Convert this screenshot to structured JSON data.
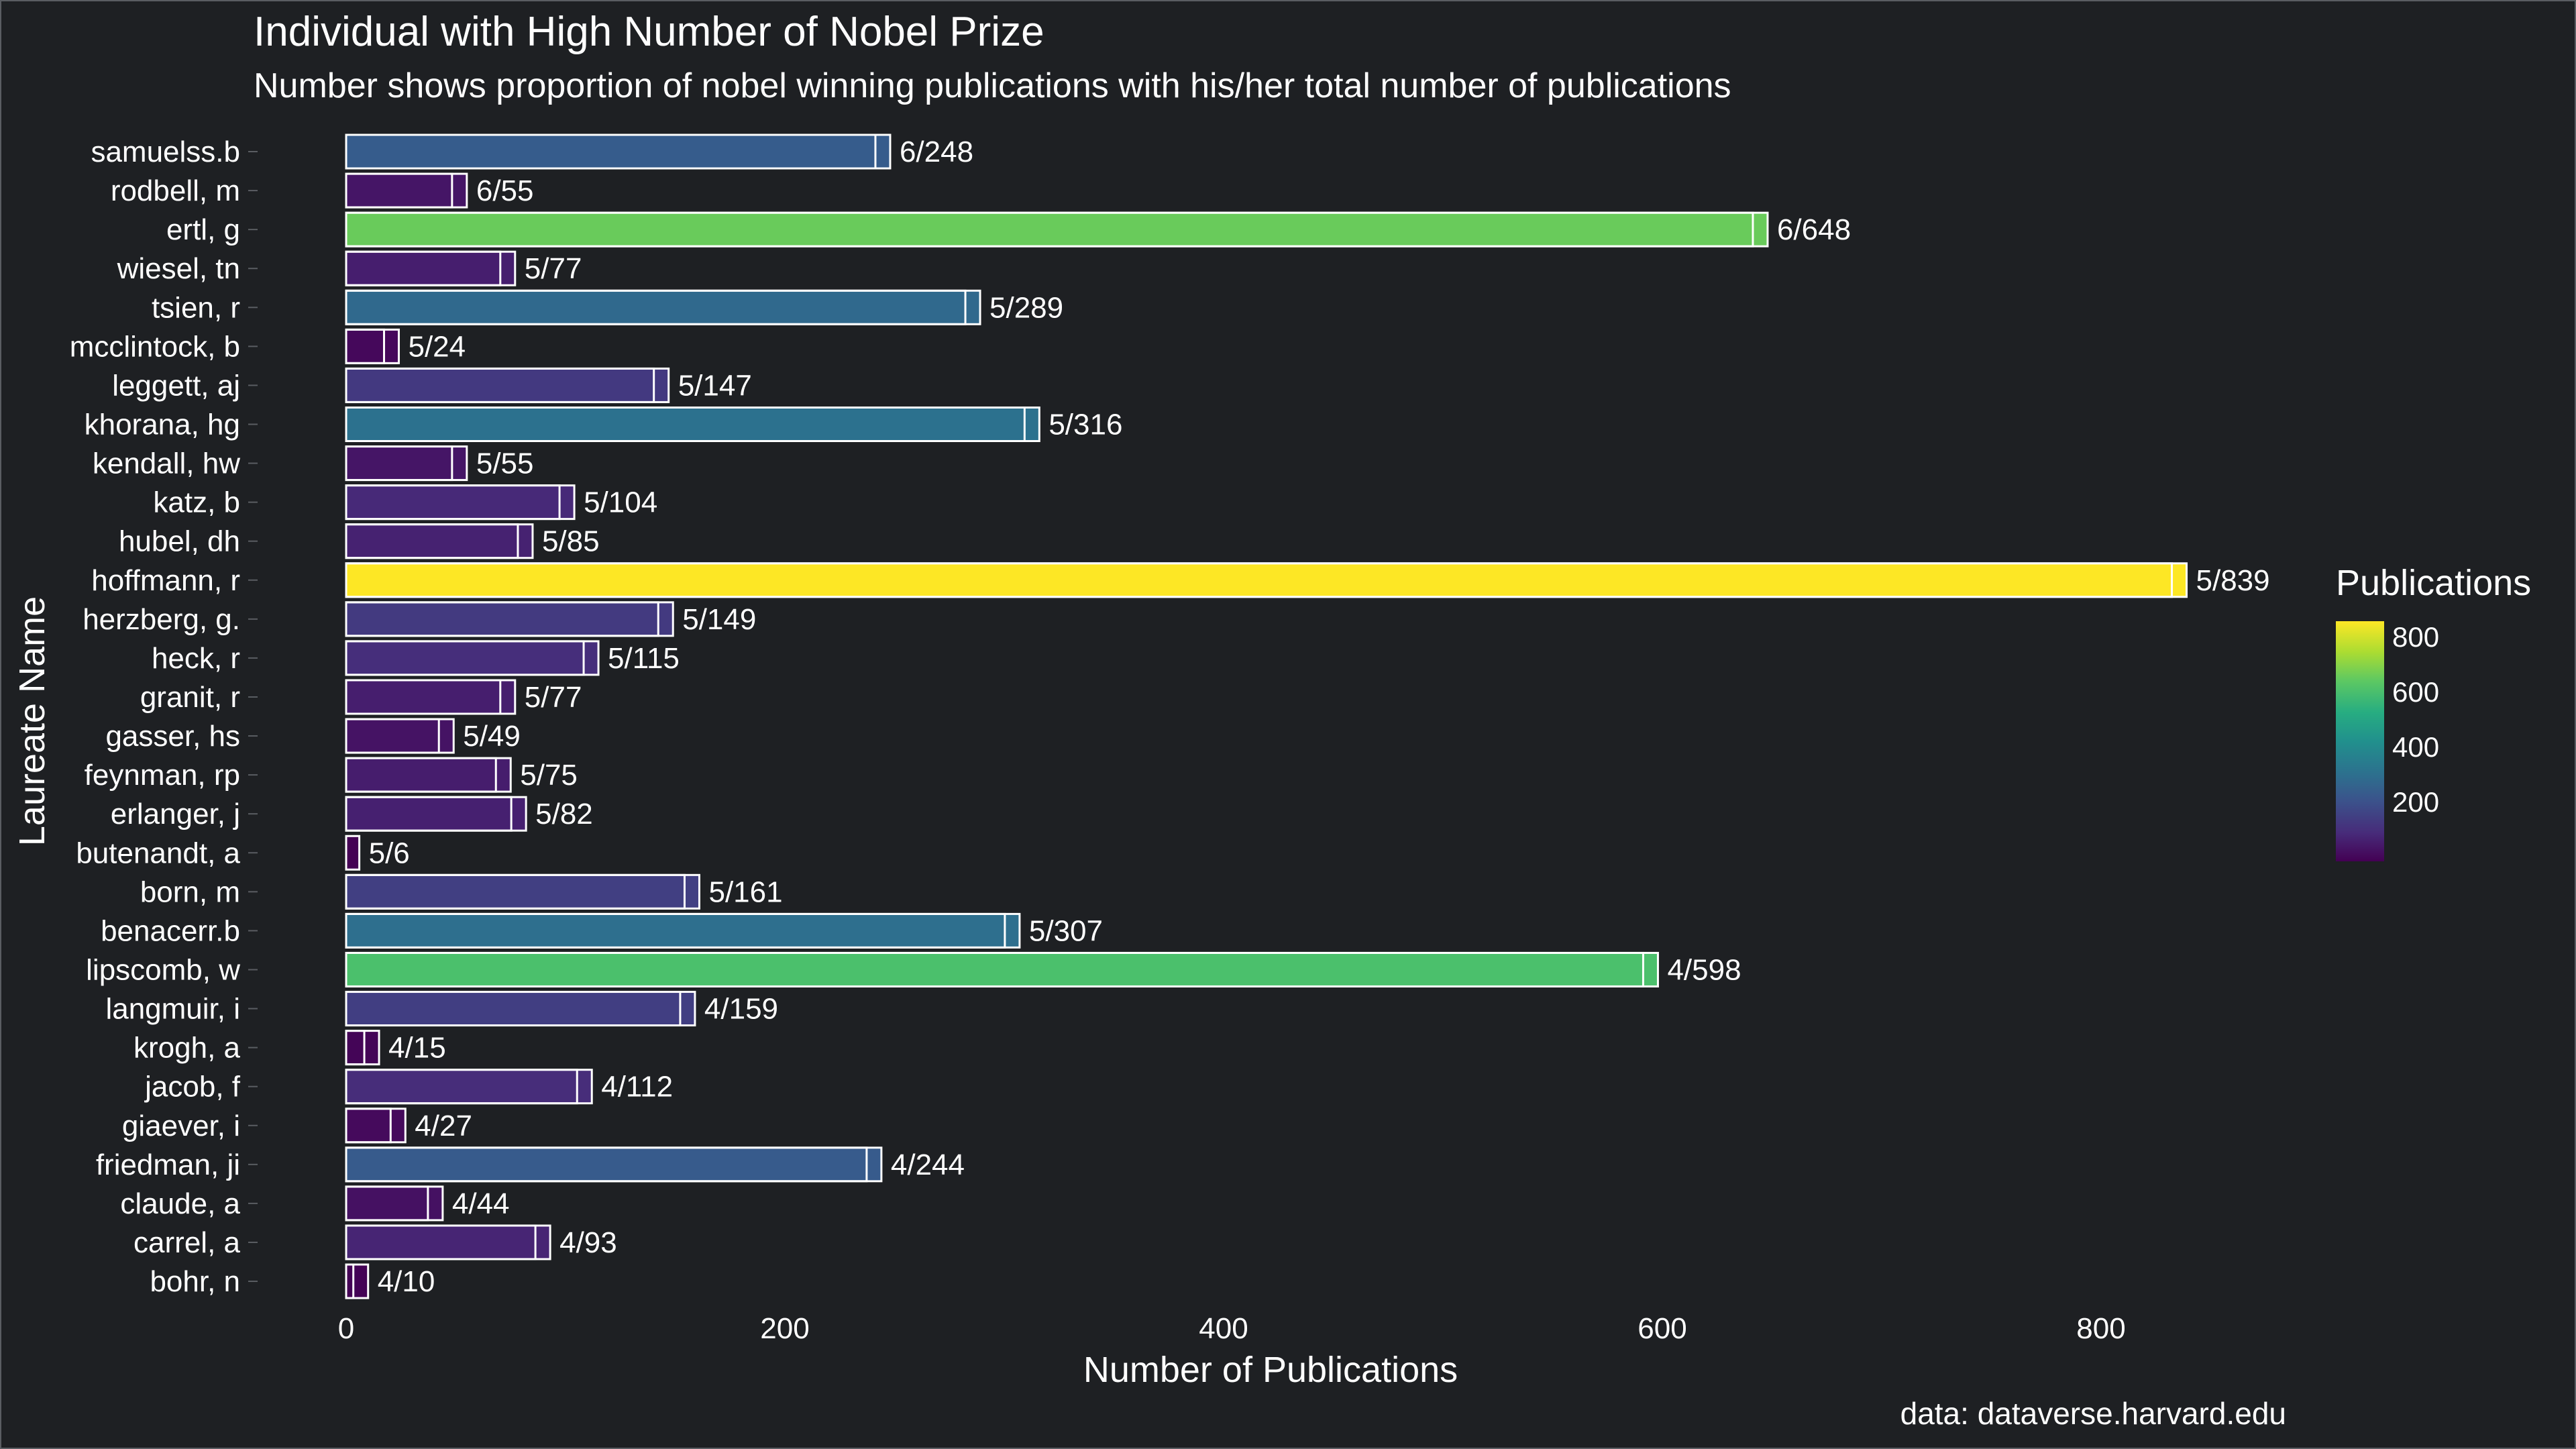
{
  "title": "Individual with High Number of Nobel Prize",
  "subtitle": "Number shows proportion of nobel winning publications with his/her total number of publications",
  "caption": "data: dataverse.harvard.edu",
  "legend": {
    "title": "Publications",
    "ticks": [
      "800",
      "600",
      "400",
      "200"
    ],
    "low_color": "#440154",
    "high_color": "#fde725"
  },
  "chart_data": {
    "type": "bar",
    "orientation": "horizontal",
    "xlabel": "Number of Publications",
    "ylabel": "Laureate Name",
    "xlim": [
      0,
      900
    ],
    "x_ticks": [
      0,
      200,
      400,
      600,
      800
    ],
    "grid": false,
    "legend_position": "right",
    "categories": [
      "samuelss.b",
      "rodbell, m",
      "ertl, g",
      "wiesel, tn",
      "tsien, r",
      "mcclintock, b",
      "leggett, aj",
      "khorana, hg",
      "kendall, hw",
      "katz, b",
      "hubel, dh",
      "hoffmann, r",
      "herzberg, g.",
      "heck, r",
      "granit, r",
      "gasser, hs",
      "feynman, rp",
      "erlanger, j",
      "butenandt, a",
      "born, m",
      "benacerr.b",
      "lipscomb, w",
      "langmuir, i",
      "krogh, a",
      "jacob, f",
      "giaever, i",
      "friedman, ji",
      "claude, a",
      "carrel, a",
      "bohr, n"
    ],
    "series": [
      {
        "name": "Publications",
        "values": [
          248,
          55,
          648,
          77,
          289,
          24,
          147,
          316,
          55,
          104,
          85,
          839,
          149,
          115,
          77,
          49,
          75,
          82,
          6,
          161,
          307,
          598,
          159,
          15,
          112,
          27,
          244,
          44,
          93,
          10
        ]
      },
      {
        "name": "Nobel",
        "values": [
          6,
          6,
          6,
          5,
          5,
          5,
          5,
          5,
          5,
          5,
          5,
          5,
          5,
          5,
          5,
          5,
          5,
          5,
          5,
          5,
          5,
          4,
          4,
          4,
          4,
          4,
          4,
          4,
          4,
          4
        ]
      }
    ],
    "data_labels": [
      "6/248",
      "6/55",
      "6/648",
      "5/77",
      "5/289",
      "5/24",
      "5/147",
      "5/316",
      "5/55",
      "5/104",
      "5/85",
      "5/839",
      "5/149",
      "5/115",
      "5/77",
      "5/49",
      "5/75",
      "5/82",
      "5/6",
      "5/161",
      "5/307",
      "4/598",
      "4/159",
      "4/15",
      "4/112",
      "4/27",
      "4/244",
      "4/44",
      "4/93",
      "4/10"
    ]
  }
}
